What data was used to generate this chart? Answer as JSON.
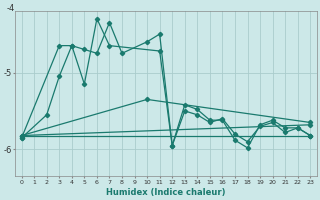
{
  "xlabel": "Humidex (Indice chaleur)",
  "bg_color": "#cce8e8",
  "grid_color": "#aacccc",
  "line_color": "#1a7a6e",
  "xlim": [
    -0.5,
    23.5
  ],
  "ylim": [
    -6.35,
    -4.2
  ],
  "yticks": [
    -6,
    -5
  ],
  "ytick_labels": [
    "-6",
    "-5"
  ],
  "xticks": [
    0,
    1,
    2,
    3,
    4,
    5,
    6,
    7,
    8,
    9,
    10,
    11,
    12,
    13,
    14,
    15,
    16,
    17,
    18,
    19,
    20,
    21,
    22,
    23
  ],
  "series1_x": [
    0,
    2,
    3,
    4,
    5,
    6,
    7,
    8,
    10,
    11,
    12,
    13,
    14,
    15,
    16,
    17,
    18,
    19,
    20,
    21,
    22,
    23
  ],
  "series1_y": [
    -5.85,
    -5.55,
    -5.05,
    -4.65,
    -4.7,
    -4.75,
    -4.35,
    -4.75,
    -4.6,
    -4.5,
    -5.95,
    -5.5,
    -5.55,
    -5.65,
    -5.6,
    -5.8,
    -5.9,
    -5.7,
    -5.65,
    -5.78,
    -5.72,
    -5.82
  ],
  "series2_x": [
    0,
    3,
    4,
    5,
    6,
    7,
    11,
    12,
    13,
    14,
    15,
    16,
    17,
    18,
    19,
    20,
    21,
    22,
    23
  ],
  "series2_y": [
    -5.85,
    -4.65,
    -4.65,
    -5.15,
    -4.3,
    -4.65,
    -4.72,
    -5.95,
    -5.42,
    -5.48,
    -5.62,
    -5.62,
    -5.88,
    -5.98,
    -5.68,
    -5.62,
    -5.72,
    -5.72,
    -5.82
  ],
  "series3_x": [
    0,
    23
  ],
  "series3_y": [
    -5.82,
    -5.68
  ],
  "series4_x": [
    0,
    23
  ],
  "series4_y": [
    -5.82,
    -5.82
  ],
  "series5_x": [
    0,
    10,
    23
  ],
  "series5_y": [
    -5.82,
    -5.35,
    -5.65
  ]
}
